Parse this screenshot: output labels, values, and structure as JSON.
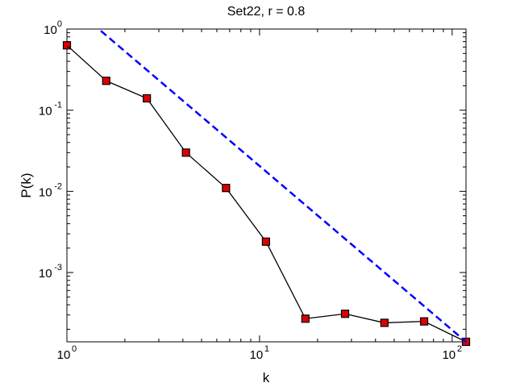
{
  "chart_data": {
    "type": "line",
    "title": "Set22, r = 0.8",
    "xlabel": "k",
    "ylabel": "P(k)",
    "x_scale": "log",
    "y_scale": "log",
    "xlim": [
      1,
      118
    ],
    "ylim": [
      0.00014,
      1
    ],
    "x_ticks": [
      {
        "value": 1,
        "base": "10",
        "exp": "0"
      },
      {
        "value": 10,
        "base": "10",
        "exp": "1"
      },
      {
        "value": 100,
        "base": "10",
        "exp": "2"
      }
    ],
    "y_ticks": [
      {
        "value": 1,
        "base": "10",
        "exp": "0"
      },
      {
        "value": 0.1,
        "base": "10",
        "exp": "-1"
      },
      {
        "value": 0.01,
        "base": "10",
        "exp": "-2"
      },
      {
        "value": 0.001,
        "base": "10",
        "exp": "-3"
      }
    ],
    "grid": false,
    "series": [
      {
        "style": "solid",
        "color": "#000000",
        "marker": "square",
        "marker_color": "#dd0000",
        "x": [
          1.0,
          1.6,
          2.6,
          4.15,
          6.7,
          10.8,
          17.3,
          27.8,
          44.5,
          71.5,
          118
        ],
        "y": [
          0.63,
          0.23,
          0.14,
          0.03,
          0.011,
          0.0024,
          0.00027,
          0.00031,
          0.00024,
          0.00025,
          0.00014
        ]
      },
      {
        "style": "dashed",
        "color": "#0000ff",
        "marker": "none",
        "x": [
          1.5,
          118
        ],
        "y": [
          0.95,
          0.00014
        ]
      }
    ]
  }
}
